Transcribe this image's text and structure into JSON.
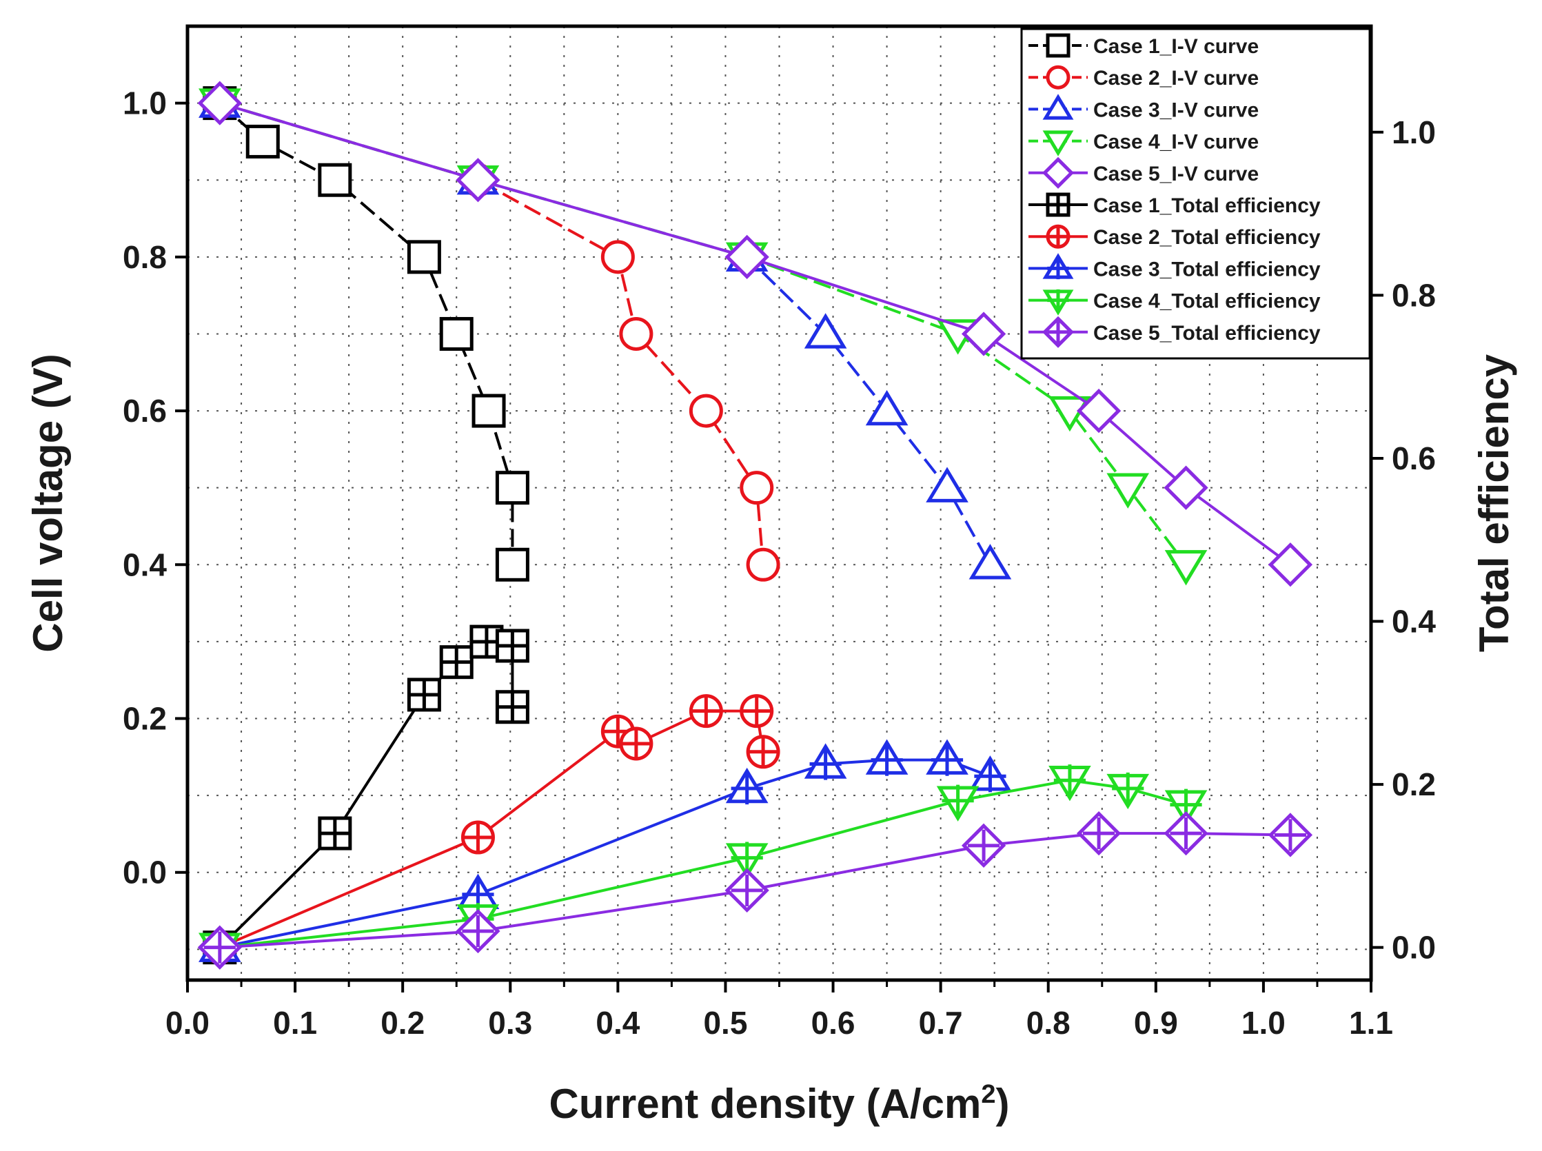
{
  "chart_data": {
    "type": "line",
    "xlabel": "Current density (A/cm",
    "xlabel_sup": "2",
    "xlabel_end": ")",
    "ylabel": "Cell voltage (V)",
    "y2label": "Total efficiency",
    "xlim": [
      0.0,
      1.1
    ],
    "ylim": [
      -0.14,
      1.1
    ],
    "y2lim": [
      -0.04,
      1.13
    ],
    "xticks": [
      0.0,
      0.1,
      0.2,
      0.3,
      0.4,
      0.5,
      0.6,
      0.7,
      0.8,
      0.9,
      1.0,
      1.1
    ],
    "xtick_labels": [
      "0.0",
      "0.1",
      "0.2",
      "0.3",
      "0.4",
      "0.5",
      "0.6",
      "0.7",
      "0.8",
      "0.9",
      "1.0",
      "1.1"
    ],
    "yticks": [
      0.0,
      0.2,
      0.4,
      0.6,
      0.8,
      1.0
    ],
    "ytick_labels": [
      "0.0",
      "0.2",
      "0.4",
      "0.6",
      "0.8",
      "1.0"
    ],
    "y2ticks": [
      0.0,
      0.2,
      0.4,
      0.6,
      0.8,
      1.0
    ],
    "y2tick_labels": [
      "0.0",
      "0.2",
      "0.4",
      "0.6",
      "0.8",
      "1.0"
    ],
    "legend_position": "top-right",
    "series": [
      {
        "name": "Case 1_I-V curve",
        "axis": "left",
        "color": "#000000",
        "marker": "square",
        "dash": true,
        "x": [
          0.03,
          0.07,
          0.137,
          0.22,
          0.25,
          0.28,
          0.302,
          0.302
        ],
        "y": [
          1.0,
          0.95,
          0.9,
          0.8,
          0.7,
          0.6,
          0.5,
          0.4
        ]
      },
      {
        "name": "Case 2_I-V curve",
        "axis": "left",
        "color": "#e8141c",
        "marker": "circle",
        "dash": true,
        "x": [
          0.03,
          0.27,
          0.4,
          0.417,
          0.482,
          0.529,
          0.535
        ],
        "y": [
          1.0,
          0.9,
          0.8,
          0.7,
          0.6,
          0.5,
          0.4
        ]
      },
      {
        "name": "Case 3_I-V curve",
        "axis": "left",
        "color": "#1f2ee6",
        "marker": "triangle-up",
        "dash": true,
        "x": [
          0.03,
          0.27,
          0.52,
          0.593,
          0.65,
          0.706,
          0.746
        ],
        "y": [
          1.0,
          0.9,
          0.8,
          0.7,
          0.6,
          0.5,
          0.4
        ]
      },
      {
        "name": "Case 4_I-V curve",
        "axis": "left",
        "color": "#22dd22",
        "marker": "triangle-down",
        "dash": true,
        "x": [
          0.03,
          0.27,
          0.52,
          0.716,
          0.82,
          0.874,
          0.928
        ],
        "y": [
          1.0,
          0.9,
          0.8,
          0.7,
          0.6,
          0.5,
          0.4
        ]
      },
      {
        "name": "Case 5_I-V curve",
        "axis": "left",
        "color": "#8a2be2",
        "marker": "diamond",
        "dash": false,
        "x": [
          0.03,
          0.27,
          0.52,
          0.74,
          0.847,
          0.928,
          1.025
        ],
        "y": [
          1.0,
          0.9,
          0.8,
          0.7,
          0.6,
          0.5,
          0.4
        ]
      },
      {
        "name": "Case 1_Total efficiency",
        "axis": "right",
        "color": "#000000",
        "marker": "square-plus",
        "dash": false,
        "x": [
          0.03,
          0.137,
          0.22,
          0.25,
          0.278,
          0.302,
          0.302
        ],
        "y": [
          0.0,
          0.14,
          0.31,
          0.35,
          0.375,
          0.37,
          0.295
        ]
      },
      {
        "name": "Case 2_Total efficiency",
        "axis": "right",
        "color": "#e8141c",
        "marker": "circle-plus",
        "dash": false,
        "x": [
          0.03,
          0.27,
          0.4,
          0.417,
          0.482,
          0.529,
          0.535
        ],
        "y": [
          0.0,
          0.135,
          0.265,
          0.25,
          0.29,
          0.29,
          0.24
        ]
      },
      {
        "name": "Case 3_Total efficiency",
        "axis": "right",
        "color": "#1f2ee6",
        "marker": "triangle-up-plus",
        "dash": false,
        "x": [
          0.03,
          0.27,
          0.52,
          0.593,
          0.65,
          0.706,
          0.746
        ],
        "y": [
          0.0,
          0.065,
          0.195,
          0.225,
          0.23,
          0.23,
          0.21
        ]
      },
      {
        "name": "Case 4_Total efficiency",
        "axis": "right",
        "color": "#22dd22",
        "marker": "triangle-down-plus",
        "dash": false,
        "x": [
          0.03,
          0.27,
          0.52,
          0.716,
          0.82,
          0.874,
          0.928
        ],
        "y": [
          0.0,
          0.035,
          0.11,
          0.18,
          0.205,
          0.195,
          0.175
        ]
      },
      {
        "name": "Case 5_Total efficiency",
        "axis": "right",
        "color": "#8a2be2",
        "marker": "diamond-plus",
        "dash": false,
        "x": [
          0.03,
          0.27,
          0.52,
          0.74,
          0.847,
          0.928,
          1.025
        ],
        "y": [
          0.0,
          0.02,
          0.07,
          0.125,
          0.14,
          0.14,
          0.138
        ]
      }
    ]
  }
}
